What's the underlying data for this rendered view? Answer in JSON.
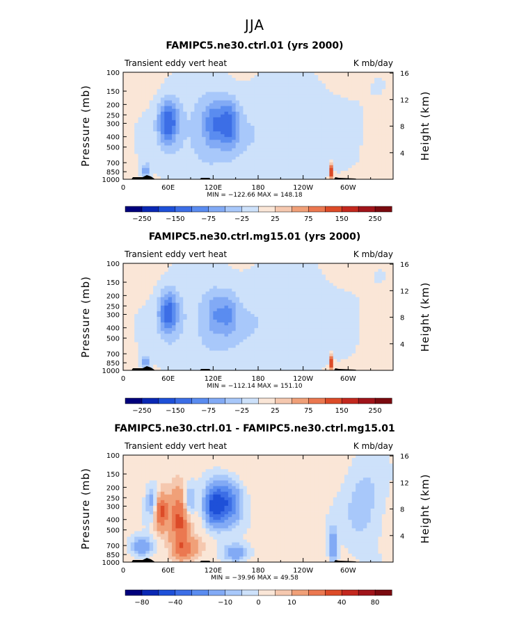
{
  "figure": {
    "title": "JJA"
  },
  "chart_data": [
    {
      "type": "heatmap",
      "title": "FAMIPC5.ne30.ctrl.01 (yrs 2000)",
      "subtitle_left": "Transient eddy vert heat",
      "subtitle_right": "K mb/day",
      "ylabel": "Pressure (mb)",
      "ylabel_right": "Height (km)",
      "x_ticks": [
        "0",
        "60E",
        "120E",
        "180",
        "120W",
        "60W"
      ],
      "x_tick_values": [
        0,
        60,
        120,
        180,
        240,
        300
      ],
      "xlim": [
        0,
        360
      ],
      "y_ticks": [
        "100",
        "150",
        "200",
        "250",
        "300",
        "400",
        "500",
        "700",
        "850",
        "1000"
      ],
      "y_tick_values": [
        100,
        150,
        200,
        250,
        300,
        400,
        500,
        700,
        850,
        1000
      ],
      "ylim": [
        100,
        1000
      ],
      "y_right_ticks": [
        "4",
        "8",
        "12",
        "16"
      ],
      "y_right_values": [
        4,
        8,
        12,
        16
      ],
      "min_max_text": "MIN = −122.66   MAX = 148.18",
      "min": -122.66,
      "max": 148.18,
      "colorbar_labels": [
        "−250",
        "−150",
        "−75",
        "−25",
        "25",
        "75",
        "150",
        "250"
      ],
      "colorbar_levels": [
        -300,
        -250,
        -200,
        -150,
        -100,
        -75,
        -50,
        -25,
        0,
        25,
        50,
        75,
        100,
        150,
        200,
        250,
        300
      ],
      "features": [
        {
          "lon": 60,
          "p": 290,
          "value": -120,
          "dlon": 9,
          "dlogp": 0.14
        },
        {
          "lon": 120,
          "p": 300,
          "value": -70,
          "dlon": 10,
          "dlogp": 0.15
        },
        {
          "lon": 141,
          "p": 300,
          "value": -90,
          "dlon": 9,
          "dlogp": 0.15
        },
        {
          "lon": 30,
          "p": 840,
          "value": -80,
          "dlon": 4,
          "dlogp": 0.05
        },
        {
          "lon": 278,
          "p": 840,
          "value": 140,
          "dlon": 1.5,
          "dlogp": 0.05
        },
        {
          "lon": 100,
          "p": 400,
          "value": -35,
          "dlon": 40,
          "dlogp": 0.35
        },
        {
          "lon": 220,
          "p": 350,
          "value": -30,
          "dlon": 60,
          "dlogp": 0.35
        }
      ],
      "background": 12
    },
    {
      "type": "heatmap",
      "title": "FAMIPC5.ne30.ctrl.mg15.01 (yrs 2000)",
      "subtitle_left": "Transient eddy vert heat",
      "subtitle_right": "K mb/day",
      "ylabel": "Pressure (mb)",
      "ylabel_right": "Height (km)",
      "x_ticks": [
        "0",
        "60E",
        "120E",
        "180",
        "120W",
        "60W"
      ],
      "x_tick_values": [
        0,
        60,
        120,
        180,
        240,
        300
      ],
      "xlim": [
        0,
        360
      ],
      "y_ticks": [
        "100",
        "150",
        "200",
        "250",
        "300",
        "400",
        "500",
        "700",
        "850",
        "1000"
      ],
      "y_tick_values": [
        100,
        150,
        200,
        250,
        300,
        400,
        500,
        700,
        850,
        1000
      ],
      "ylim": [
        100,
        1000
      ],
      "y_right_ticks": [
        "4",
        "8",
        "12",
        "16"
      ],
      "y_right_values": [
        4,
        8,
        12,
        16
      ],
      "min_max_text": "MIN = −112.14   MAX = 151.10",
      "min": -112.14,
      "max": 151.1,
      "colorbar_labels": [
        "−250",
        "−150",
        "−75",
        "−25",
        "25",
        "75",
        "150",
        "250"
      ],
      "colorbar_levels": [
        -300,
        -250,
        -200,
        -150,
        -100,
        -75,
        -50,
        -25,
        0,
        25,
        50,
        75,
        100,
        150,
        200,
        250,
        300
      ],
      "features": [
        {
          "lon": 60,
          "p": 290,
          "value": -110,
          "dlon": 9,
          "dlogp": 0.14
        },
        {
          "lon": 122,
          "p": 300,
          "value": -45,
          "dlon": 8,
          "dlogp": 0.14
        },
        {
          "lon": 140,
          "p": 300,
          "value": -55,
          "dlon": 8,
          "dlogp": 0.14
        },
        {
          "lon": 30,
          "p": 840,
          "value": -75,
          "dlon": 4,
          "dlogp": 0.05
        },
        {
          "lon": 278,
          "p": 840,
          "value": 150,
          "dlon": 1.5,
          "dlogp": 0.05
        },
        {
          "lon": 100,
          "p": 400,
          "value": -32,
          "dlon": 40,
          "dlogp": 0.35
        },
        {
          "lon": 215,
          "p": 330,
          "value": -30,
          "dlon": 60,
          "dlogp": 0.35
        }
      ],
      "background": 12
    },
    {
      "type": "heatmap",
      "title": "FAMIPC5.ne30.ctrl.01 - FAMIPC5.ne30.ctrl.mg15.01",
      "subtitle_left": "Transient eddy vert heat",
      "subtitle_right": "K mb/day",
      "ylabel": "Pressure (mb)",
      "ylabel_right": "Height (km)",
      "x_ticks": [
        "0",
        "60E",
        "120E",
        "180",
        "120W",
        "60W"
      ],
      "x_tick_values": [
        0,
        60,
        120,
        180,
        240,
        300
      ],
      "xlim": [
        0,
        360
      ],
      "y_ticks": [
        "100",
        "150",
        "200",
        "250",
        "300",
        "400",
        "500",
        "700",
        "850",
        "1000"
      ],
      "y_tick_values": [
        100,
        150,
        200,
        250,
        300,
        400,
        500,
        700,
        850,
        1000
      ],
      "ylim": [
        100,
        1000
      ],
      "y_right_ticks": [
        "4",
        "8",
        "12",
        "16"
      ],
      "y_right_values": [
        4,
        8,
        12,
        16
      ],
      "min_max_text": "MIN = −39.96   MAX =  49.58",
      "min": -39.96,
      "max": 49.58,
      "colorbar_labels": [
        "−80",
        "−40",
        "−10",
        "0",
        "10",
        "40",
        "80"
      ],
      "colorbar_levels": [
        -100,
        -80,
        -60,
        -40,
        -30,
        -20,
        -10,
        -5,
        0,
        5,
        10,
        20,
        30,
        40,
        60,
        80,
        100
      ],
      "features": [
        {
          "lon": 135,
          "p": 280,
          "value": -40,
          "dlon": 14,
          "dlogp": 0.14
        },
        {
          "lon": 120,
          "p": 300,
          "value": -30,
          "dlon": 8,
          "dlogp": 0.12
        },
        {
          "lon": 50,
          "p": 340,
          "value": 35,
          "dlon": 7,
          "dlogp": 0.12
        },
        {
          "lon": 75,
          "p": 400,
          "value": 30,
          "dlon": 8,
          "dlogp": 0.2
        },
        {
          "lon": 40,
          "p": 280,
          "value": -20,
          "dlon": 6,
          "dlogp": 0.12
        },
        {
          "lon": 88,
          "p": 270,
          "value": -18,
          "dlon": 6,
          "dlogp": 0.1
        },
        {
          "lon": 25,
          "p": 720,
          "value": -22,
          "dlon": 10,
          "dlogp": 0.06
        },
        {
          "lon": 85,
          "p": 750,
          "value": 20,
          "dlon": 12,
          "dlogp": 0.07
        },
        {
          "lon": 150,
          "p": 820,
          "value": -18,
          "dlon": 12,
          "dlogp": 0.06
        },
        {
          "lon": 280,
          "p": 720,
          "value": -20,
          "dlon": 4,
          "dlogp": 0.12
        },
        {
          "lon": 320,
          "p": 300,
          "value": -10,
          "dlon": 20,
          "dlogp": 0.3
        }
      ],
      "background": 4
    }
  ]
}
